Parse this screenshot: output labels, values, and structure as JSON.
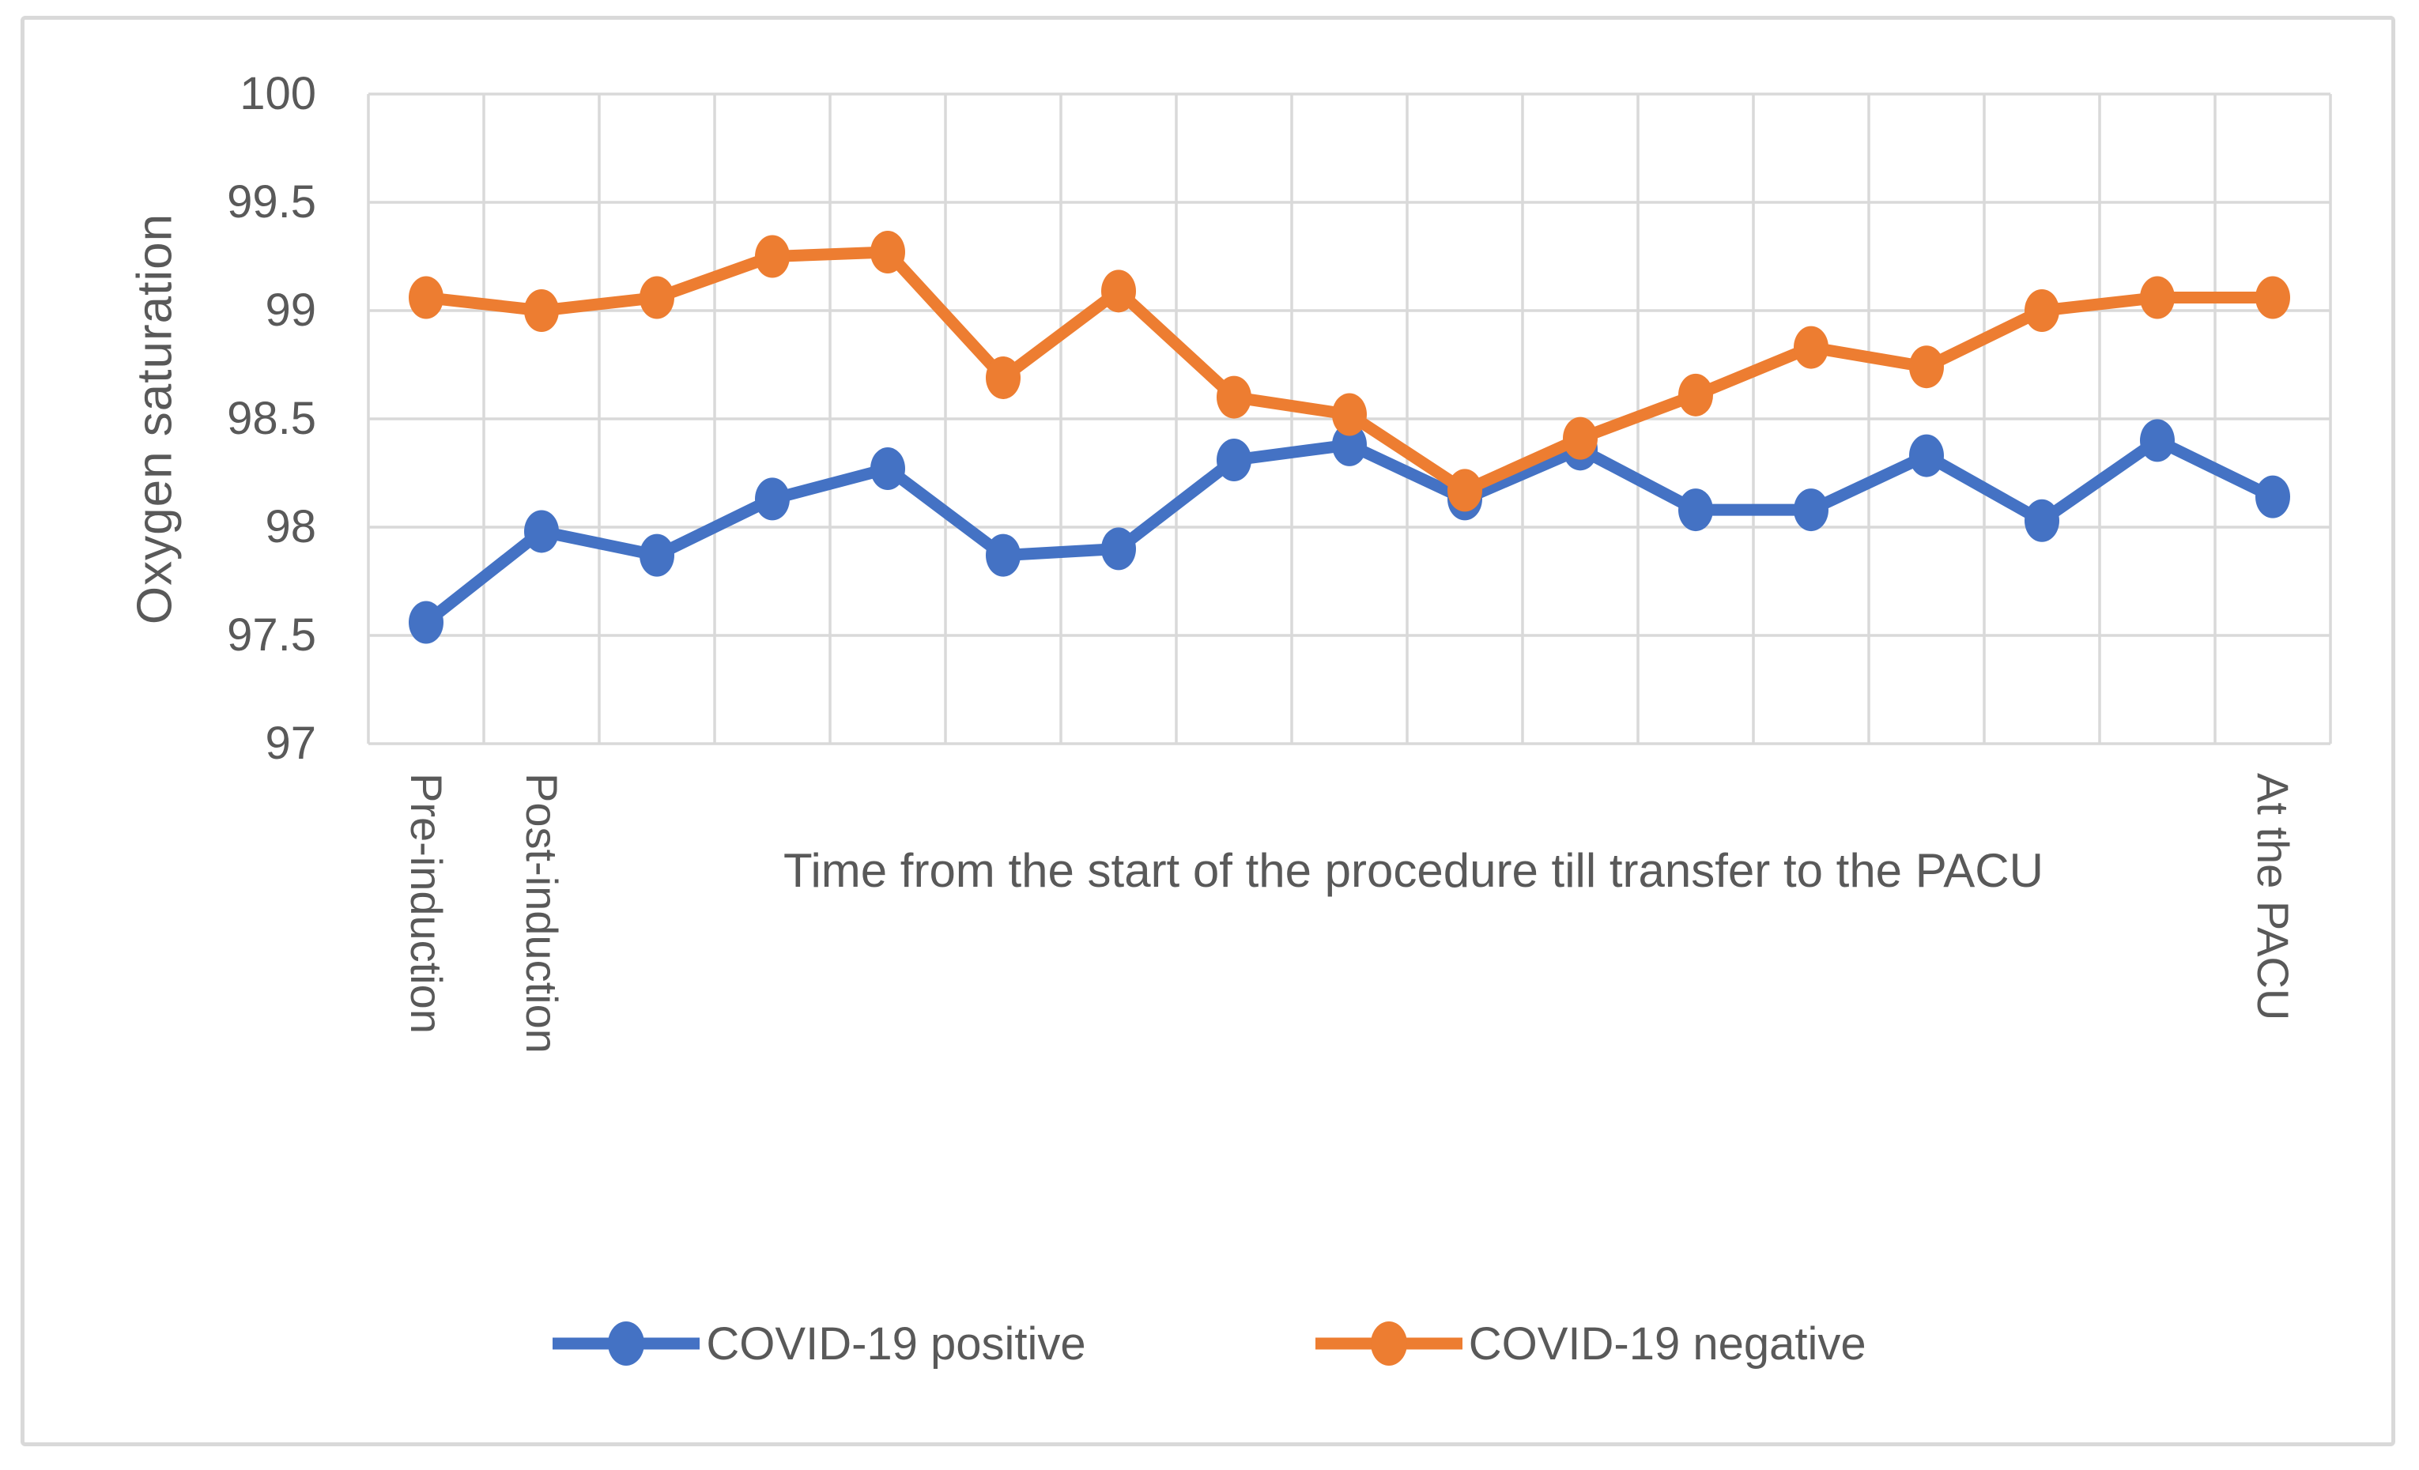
{
  "figure": {
    "background": "#FFFFFF",
    "border_color": "#D9D9D9",
    "text_color": "#595959",
    "gridline_color": "#D9D9D9"
  },
  "chart_data": {
    "type": "line",
    "title": "",
    "x_axis_title": "Time from the start of the procedure till transfer to the PACU",
    "y_axis_title": "Oxygen saturation",
    "ylim": [
      97,
      100
    ],
    "y_ticks": [
      97,
      97.5,
      98,
      98.5,
      99,
      99.5,
      100
    ],
    "grid": true,
    "legend_position": "bottom",
    "marker": "circle",
    "categories": [
      "Pre-induction",
      "Post-induction",
      "",
      "",
      "",
      "",
      "",
      "",
      "",
      "",
      "",
      "",
      "",
      "",
      "",
      "",
      "At the PACU"
    ],
    "series": [
      {
        "name": "COVID-19 positive",
        "color": "#4472C4",
        "values": [
          97.56,
          97.98,
          97.87,
          98.13,
          98.27,
          97.87,
          97.9,
          98.31,
          98.38,
          98.13,
          98.36,
          98.08,
          98.08,
          98.33,
          98.03,
          98.4,
          98.14
        ]
      },
      {
        "name": "COVID-19 negative",
        "color": "#ED7D31",
        "values": [
          99.06,
          99.0,
          99.06,
          99.25,
          99.27,
          98.69,
          99.09,
          98.6,
          98.52,
          98.17,
          98.41,
          98.61,
          98.83,
          98.74,
          99.0,
          99.06,
          99.06
        ]
      }
    ]
  },
  "legend": {
    "items": [
      {
        "label": "COVID-19 positive",
        "color": "#4472C4"
      },
      {
        "label": "COVID-19 negative",
        "color": "#ED7D31"
      }
    ]
  }
}
